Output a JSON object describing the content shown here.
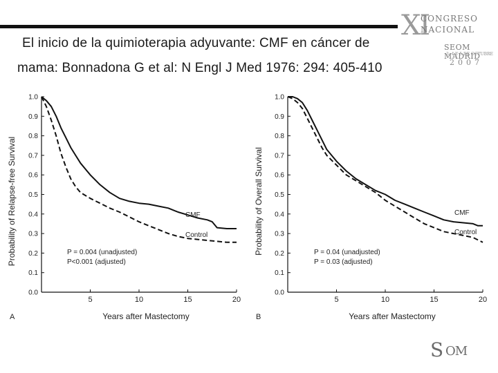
{
  "slide": {
    "title_line1": "El inicio de la quimioterapia adyuvante: CMF en cáncer de",
    "title_line2": "mama: Bonnadona G et al: N Engl J Med 1976: 294: 405-410"
  },
  "logo": {
    "numeral": "XI",
    "line1": "CONGRESO",
    "line2": "NACIONAL",
    "line3": "SEOM MADRID",
    "line4": "3, 4 Y 5 DE OCTUBRE",
    "year": "2007"
  },
  "footer_logo": {
    "s": "S",
    "rest": "OM"
  },
  "chart_data": [
    {
      "type": "line",
      "panel_label": "A",
      "xlabel": "Years after Mastectomy",
      "ylabel": "Probability of Relapse-free Survival",
      "xlim": [
        0,
        20
      ],
      "ylim": [
        0,
        1.0
      ],
      "x_ticks": [
        5,
        10,
        15,
        20
      ],
      "y_ticks": [
        "0.0",
        "0.1",
        "0.2",
        "0.3",
        "0.4",
        "0.5",
        "0.6",
        "0.7",
        "0.8",
        "0.9",
        "1.0"
      ],
      "grid": false,
      "series": [
        {
          "name": "CMF",
          "style": "solid",
          "x": [
            0,
            0.5,
            1,
            1.5,
            2,
            2.5,
            3,
            3.5,
            4,
            5,
            6,
            7,
            8,
            9,
            10,
            11,
            12,
            13,
            14,
            15,
            16,
            17,
            17.5,
            18,
            19,
            20
          ],
          "y": [
            1.0,
            0.98,
            0.95,
            0.9,
            0.84,
            0.79,
            0.74,
            0.7,
            0.66,
            0.6,
            0.55,
            0.51,
            0.48,
            0.465,
            0.455,
            0.45,
            0.44,
            0.43,
            0.41,
            0.395,
            0.38,
            0.37,
            0.36,
            0.33,
            0.325,
            0.325
          ]
        },
        {
          "name": "Control",
          "style": "dashed",
          "x": [
            0,
            0.5,
            1,
            1.5,
            2,
            2.5,
            3,
            3.5,
            4,
            5,
            6,
            7,
            8,
            9,
            10,
            11,
            12,
            13,
            14,
            15,
            16,
            17,
            18,
            19,
            20
          ],
          "y": [
            1.0,
            0.95,
            0.88,
            0.8,
            0.71,
            0.64,
            0.58,
            0.54,
            0.51,
            0.48,
            0.455,
            0.43,
            0.41,
            0.385,
            0.36,
            0.34,
            0.32,
            0.3,
            0.285,
            0.275,
            0.27,
            0.265,
            0.26,
            0.255,
            0.255
          ]
        }
      ],
      "annotations": [
        "P = 0.004 (unadjusted)",
        "P<0.001 (adjusted)"
      ]
    },
    {
      "type": "line",
      "panel_label": "B",
      "xlabel": "Years after Mastectomy",
      "ylabel": "Probability of Overall Survival",
      "xlim": [
        0,
        20
      ],
      "ylim": [
        0,
        1.0
      ],
      "x_ticks": [
        5,
        10,
        15,
        20
      ],
      "y_ticks": [
        "0.0",
        "0.1",
        "0.2",
        "0.3",
        "0.4",
        "0.5",
        "0.6",
        "0.7",
        "0.8",
        "0.9",
        "1.0"
      ],
      "grid": false,
      "series": [
        {
          "name": "CMF",
          "style": "solid",
          "x": [
            0,
            0.5,
            1,
            1.5,
            2,
            2.5,
            3,
            3.5,
            4,
            5,
            6,
            7,
            8,
            9,
            10,
            11,
            12,
            13,
            14,
            15,
            16,
            17,
            18,
            19,
            19.5,
            20
          ],
          "y": [
            1.0,
            1.0,
            0.99,
            0.97,
            0.93,
            0.88,
            0.83,
            0.78,
            0.73,
            0.67,
            0.62,
            0.58,
            0.55,
            0.52,
            0.5,
            0.47,
            0.45,
            0.43,
            0.41,
            0.39,
            0.37,
            0.36,
            0.355,
            0.35,
            0.34,
            0.34
          ]
        },
        {
          "name": "Control",
          "style": "dashed",
          "x": [
            0,
            0.5,
            1,
            1.5,
            2,
            2.5,
            3,
            3.5,
            4,
            5,
            6,
            7,
            8,
            9,
            10,
            11,
            12,
            13,
            14,
            15,
            16,
            17,
            18,
            19,
            20
          ],
          "y": [
            1.0,
            0.99,
            0.97,
            0.94,
            0.89,
            0.84,
            0.79,
            0.74,
            0.7,
            0.65,
            0.6,
            0.57,
            0.54,
            0.51,
            0.47,
            0.44,
            0.41,
            0.38,
            0.35,
            0.33,
            0.31,
            0.3,
            0.29,
            0.28,
            0.255
          ]
        }
      ],
      "annotations": [
        "P = 0.04 (unadjusted)",
        "P = 0.03 (adjusted)"
      ]
    }
  ]
}
